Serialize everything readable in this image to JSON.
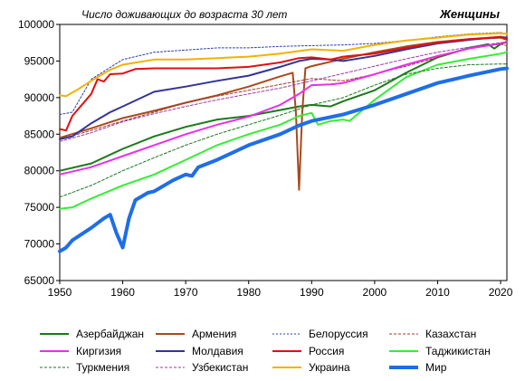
{
  "chart_data": {
    "type": "line",
    "title": "Число доживающих до возраста 30 лет",
    "subtitle": "Женщины",
    "xlabel": "",
    "ylabel": "",
    "xlim": [
      1950,
      2021
    ],
    "ylim": [
      65000,
      100000
    ],
    "xticks": [
      1950,
      1960,
      1970,
      1980,
      1990,
      2000,
      2010,
      2020
    ],
    "yticks": [
      65000,
      70000,
      75000,
      80000,
      85000,
      90000,
      95000,
      100000
    ],
    "grid": false,
    "legend_position": "bottom",
    "series": [
      {
        "name": "Азербайджан",
        "color": "#1a7a1a",
        "dash": "solid",
        "width": 2,
        "points": [
          [
            1950,
            80000
          ],
          [
            1955,
            81000
          ],
          [
            1960,
            83000
          ],
          [
            1965,
            84700
          ],
          [
            1970,
            86000
          ],
          [
            1975,
            87000
          ],
          [
            1980,
            87500
          ],
          [
            1985,
            88300
          ],
          [
            1988,
            88800
          ],
          [
            1990,
            89000
          ],
          [
            1993,
            88800
          ],
          [
            1995,
            89500
          ],
          [
            2000,
            91000
          ],
          [
            2005,
            93400
          ],
          [
            2010,
            95500
          ],
          [
            2015,
            96800
          ],
          [
            2018,
            97300
          ],
          [
            2019,
            96700
          ],
          [
            2020,
            97300
          ],
          [
            2021,
            97600
          ]
        ]
      },
      {
        "name": "Армения",
        "color": "#a84a1e",
        "dash": "solid",
        "width": 2,
        "points": [
          [
            1950,
            84500
          ],
          [
            1955,
            85800
          ],
          [
            1960,
            87200
          ],
          [
            1965,
            88200
          ],
          [
            1970,
            89300
          ],
          [
            1975,
            90300
          ],
          [
            1980,
            91500
          ],
          [
            1985,
            92900
          ],
          [
            1987,
            93400
          ],
          [
            1987.5,
            88000
          ],
          [
            1988,
            77400
          ],
          [
            1988.5,
            88000
          ],
          [
            1989,
            94000
          ],
          [
            1990,
            94300
          ],
          [
            1995,
            95300
          ],
          [
            2000,
            96200
          ],
          [
            2005,
            97000
          ],
          [
            2010,
            97600
          ],
          [
            2015,
            98000
          ],
          [
            2020,
            98200
          ],
          [
            2021,
            97900
          ]
        ]
      },
      {
        "name": "Белоруссия",
        "color": "#2b3bb0",
        "dash": "2,2",
        "width": 1,
        "points": [
          [
            1950,
            87700
          ],
          [
            1952,
            88000
          ],
          [
            1955,
            92500
          ],
          [
            1960,
            95200
          ],
          [
            1965,
            96200
          ],
          [
            1970,
            96500
          ],
          [
            1975,
            96800
          ],
          [
            1980,
            96800
          ],
          [
            1985,
            97000
          ],
          [
            1990,
            97100
          ],
          [
            1995,
            97200
          ],
          [
            2000,
            97400
          ],
          [
            2005,
            97800
          ],
          [
            2010,
            98300
          ],
          [
            2015,
            98700
          ],
          [
            2020,
            98900
          ],
          [
            2021,
            98700
          ]
        ]
      },
      {
        "name": "Казахстан",
        "color": "#a03a2a",
        "dash": "3,2",
        "width": 1,
        "points": [
          [
            1950,
            84300
          ],
          [
            1955,
            85500
          ],
          [
            1960,
            86800
          ],
          [
            1965,
            88000
          ],
          [
            1970,
            89300
          ],
          [
            1975,
            90200
          ],
          [
            1980,
            91000
          ],
          [
            1985,
            91800
          ],
          [
            1990,
            92600
          ],
          [
            1995,
            92300
          ],
          [
            2000,
            93200
          ],
          [
            2005,
            94300
          ],
          [
            2010,
            95500
          ],
          [
            2015,
            96700
          ],
          [
            2020,
            97300
          ],
          [
            2021,
            97100
          ]
        ]
      },
      {
        "name": "Киргизия",
        "color": "#e830e8",
        "dash": "solid",
        "width": 2,
        "points": [
          [
            1950,
            79500
          ],
          [
            1955,
            80500
          ],
          [
            1960,
            82000
          ],
          [
            1965,
            83500
          ],
          [
            1970,
            85000
          ],
          [
            1975,
            86300
          ],
          [
            1980,
            87400
          ],
          [
            1985,
            89000
          ],
          [
            1988,
            90500
          ],
          [
            1990,
            91700
          ],
          [
            1993,
            91800
          ],
          [
            1995,
            92000
          ],
          [
            2000,
            93200
          ],
          [
            2005,
            94500
          ],
          [
            2010,
            95700
          ],
          [
            2015,
            96700
          ],
          [
            2020,
            97400
          ],
          [
            2021,
            97600
          ]
        ]
      },
      {
        "name": "Молдавия",
        "color": "#333399",
        "dash": "solid",
        "width": 2,
        "points": [
          [
            1950,
            84300
          ],
          [
            1952,
            84700
          ],
          [
            1955,
            86500
          ],
          [
            1958,
            88000
          ],
          [
            1960,
            88800
          ],
          [
            1965,
            90800
          ],
          [
            1970,
            91500
          ],
          [
            1975,
            92300
          ],
          [
            1980,
            93000
          ],
          [
            1985,
            94200
          ],
          [
            1988,
            95000
          ],
          [
            1990,
            95300
          ],
          [
            1993,
            95200
          ],
          [
            1995,
            95000
          ],
          [
            2000,
            95700
          ],
          [
            2005,
            96600
          ],
          [
            2010,
            97400
          ],
          [
            2015,
            97900
          ],
          [
            2020,
            98300
          ],
          [
            2021,
            98200
          ]
        ]
      },
      {
        "name": "Россия",
        "color": "#e01010",
        "dash": "solid",
        "width": 2,
        "points": [
          [
            1950,
            85700
          ],
          [
            1951,
            85500
          ],
          [
            1952,
            87500
          ],
          [
            1955,
            90500
          ],
          [
            1956,
            92500
          ],
          [
            1957,
            92200
          ],
          [
            1958,
            93200
          ],
          [
            1960,
            93300
          ],
          [
            1962,
            93900
          ],
          [
            1965,
            94000
          ],
          [
            1970,
            94000
          ],
          [
            1975,
            94000
          ],
          [
            1980,
            94200
          ],
          [
            1985,
            94800
          ],
          [
            1988,
            95400
          ],
          [
            1990,
            95500
          ],
          [
            1993,
            95200
          ],
          [
            1995,
            95600
          ],
          [
            2000,
            96000
          ],
          [
            2005,
            96800
          ],
          [
            2010,
            97500
          ],
          [
            2015,
            98000
          ],
          [
            2020,
            98300
          ],
          [
            2021,
            98000
          ]
        ]
      },
      {
        "name": "Таджикистан",
        "color": "#33ee33",
        "dash": "solid",
        "width": 2,
        "points": [
          [
            1950,
            74800
          ],
          [
            1952,
            75000
          ],
          [
            1955,
            76200
          ],
          [
            1960,
            78000
          ],
          [
            1965,
            79500
          ],
          [
            1970,
            81500
          ],
          [
            1975,
            83500
          ],
          [
            1980,
            85000
          ],
          [
            1985,
            86300
          ],
          [
            1988,
            87500
          ],
          [
            1990,
            87900
          ],
          [
            1991,
            86300
          ],
          [
            1993,
            86800
          ],
          [
            1995,
            87000
          ],
          [
            1996,
            86800
          ],
          [
            2000,
            89700
          ],
          [
            2005,
            92800
          ],
          [
            2010,
            94500
          ],
          [
            2015,
            95300
          ],
          [
            2020,
            96000
          ],
          [
            2021,
            96200
          ]
        ]
      },
      {
        "name": "Туркмения",
        "color": "#1a7a1a",
        "dash": "3,2",
        "width": 1,
        "points": [
          [
            1950,
            76400
          ],
          [
            1955,
            78000
          ],
          [
            1960,
            80000
          ],
          [
            1965,
            81800
          ],
          [
            1970,
            83500
          ],
          [
            1975,
            85000
          ],
          [
            1980,
            86300
          ],
          [
            1985,
            87600
          ],
          [
            1990,
            89000
          ],
          [
            1995,
            90000
          ],
          [
            2000,
            91700
          ],
          [
            2005,
            93200
          ],
          [
            2010,
            94000
          ],
          [
            2015,
            94500
          ],
          [
            2020,
            94600
          ],
          [
            2021,
            94600
          ]
        ]
      },
      {
        "name": "Узбекистан",
        "color": "#9a3aa8",
        "dash": "3,2",
        "width": 1,
        "points": [
          [
            1950,
            84000
          ],
          [
            1955,
            85200
          ],
          [
            1960,
            86700
          ],
          [
            1965,
            87800
          ],
          [
            1970,
            88800
          ],
          [
            1975,
            89700
          ],
          [
            1980,
            90500
          ],
          [
            1985,
            91300
          ],
          [
            1990,
            92300
          ],
          [
            1995,
            93300
          ],
          [
            2000,
            94300
          ],
          [
            2005,
            95300
          ],
          [
            2010,
            96200
          ],
          [
            2015,
            96900
          ],
          [
            2020,
            97500
          ],
          [
            2021,
            97600
          ]
        ]
      },
      {
        "name": "Украина",
        "color": "#f2b200",
        "dash": "solid",
        "width": 2,
        "points": [
          [
            1950,
            90300
          ],
          [
            1951,
            90200
          ],
          [
            1953,
            91200
          ],
          [
            1955,
            92300
          ],
          [
            1958,
            93800
          ],
          [
            1960,
            94500
          ],
          [
            1965,
            95200
          ],
          [
            1970,
            95200
          ],
          [
            1975,
            95400
          ],
          [
            1980,
            95600
          ],
          [
            1985,
            96000
          ],
          [
            1990,
            96600
          ],
          [
            1995,
            96400
          ],
          [
            2000,
            97200
          ],
          [
            2005,
            97800
          ],
          [
            2010,
            98200
          ],
          [
            2015,
            98600
          ],
          [
            2020,
            98800
          ],
          [
            2021,
            98700
          ]
        ]
      },
      {
        "name": "Мир",
        "color": "#1e6ee8",
        "dash": "solid",
        "width": 4,
        "points": [
          [
            1950,
            69000
          ],
          [
            1951,
            69500
          ],
          [
            1952,
            70500
          ],
          [
            1955,
            72200
          ],
          [
            1957,
            73500
          ],
          [
            1958,
            74000
          ],
          [
            1959,
            71500
          ],
          [
            1960,
            69500
          ],
          [
            1961,
            73500
          ],
          [
            1962,
            76000
          ],
          [
            1964,
            77000
          ],
          [
            1965,
            77200
          ],
          [
            1968,
            78700
          ],
          [
            1970,
            79500
          ],
          [
            1971,
            79300
          ],
          [
            1972,
            80500
          ],
          [
            1975,
            81500
          ],
          [
            1980,
            83500
          ],
          [
            1985,
            85000
          ],
          [
            1988,
            86200
          ],
          [
            1990,
            86800
          ],
          [
            1995,
            87700
          ],
          [
            2000,
            89000
          ],
          [
            2005,
            90500
          ],
          [
            2010,
            92000
          ],
          [
            2015,
            93000
          ],
          [
            2020,
            93900
          ],
          [
            2021,
            94000
          ]
        ]
      }
    ]
  }
}
